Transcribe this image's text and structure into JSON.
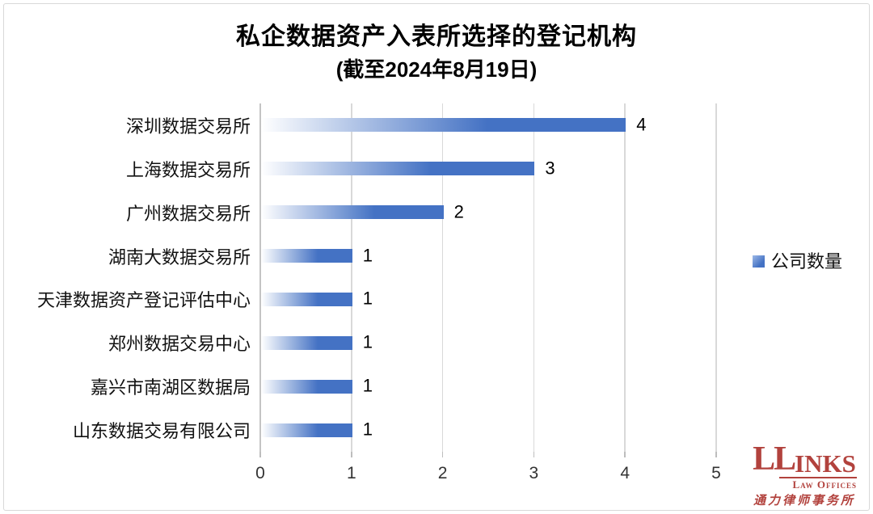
{
  "title": "私企数据资产入表所选择的登记机构",
  "subtitle": "(截至2024年8月19日)",
  "legend": {
    "label": "公司数量",
    "color": "#4472c4"
  },
  "logo": {
    "initials": "LL",
    "wordmark_rest": "INKS",
    "subtext": "Law Offices",
    "chinese": "通力律师事务所",
    "color": "#b2423d"
  },
  "chart_data": {
    "type": "bar",
    "orientation": "horizontal",
    "title": "私企数据资产入表所选择的登记机构",
    "subtitle": "(截至2024年8月19日)",
    "series_name": "公司数量",
    "categories": [
      "深圳数据交易所",
      "上海数据交易所",
      "广州数据交易所",
      "湖南大数据交易所",
      "天津数据资产登记评估中心",
      "郑州数据交易中心",
      "嘉兴市南湖区数据局",
      "山东数据交易有限公司"
    ],
    "values": [
      4,
      3,
      2,
      1,
      1,
      1,
      1,
      1
    ],
    "xlim": [
      0,
      5
    ],
    "xticks": [
      0,
      1,
      2,
      3,
      4,
      5
    ],
    "grid": true,
    "legend_position": "right",
    "bar_color": "#4472c4",
    "bar_gradient_start": "#ffffff",
    "gridline_color": "#d9d9d9"
  }
}
